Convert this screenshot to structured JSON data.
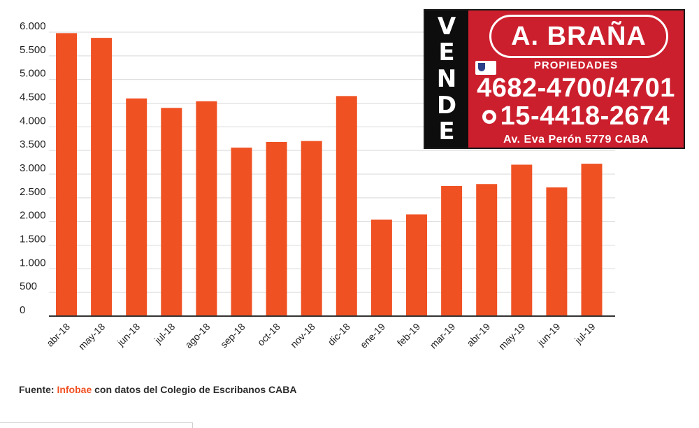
{
  "chart_data": {
    "type": "bar",
    "categories": [
      "abr-18",
      "may-18",
      "jun-18",
      "jul-18",
      "ago-18",
      "sep-18",
      "oct-18",
      "nov-18",
      "dic-18",
      "ene-19",
      "feb-19",
      "mar-19",
      "abr-19",
      "may-19",
      "jun-19",
      "jul-19"
    ],
    "values": [
      5980,
      5880,
      4600,
      4400,
      4540,
      3560,
      3680,
      3700,
      4650,
      2040,
      2150,
      2750,
      2790,
      3200,
      2720,
      3220
    ],
    "title": "",
    "xlabel": "",
    "ylabel": "",
    "ylim": [
      0,
      6000
    ],
    "yticks": [
      0,
      500,
      1000,
      1500,
      2000,
      2500,
      3000,
      3500,
      4000,
      4500,
      5000,
      5500,
      6000
    ],
    "ytick_labels": [
      "0",
      "500",
      "1.000",
      "1.500",
      "2.000",
      "2.500",
      "3.000",
      "3.500",
      "4.000",
      "4.500",
      "5.000",
      "5.500",
      "6.000"
    ],
    "grid": true,
    "bar_color": "#f05123"
  },
  "ad": {
    "side_letters": [
      "V",
      "E",
      "N",
      "D",
      "E"
    ],
    "brand": "A. BRAÑA",
    "subtitle": "PROPIEDADES",
    "phone": "4682-4700/4701",
    "mobile": "15-4418-2674",
    "address": "Av. Eva Perón 5779 CABA",
    "background": "#cc1f2e"
  },
  "source": {
    "prefix": "Fuente: ",
    "brand": "Infobae",
    "suffix": " con datos del Colegio de Escribanos CABA"
  }
}
